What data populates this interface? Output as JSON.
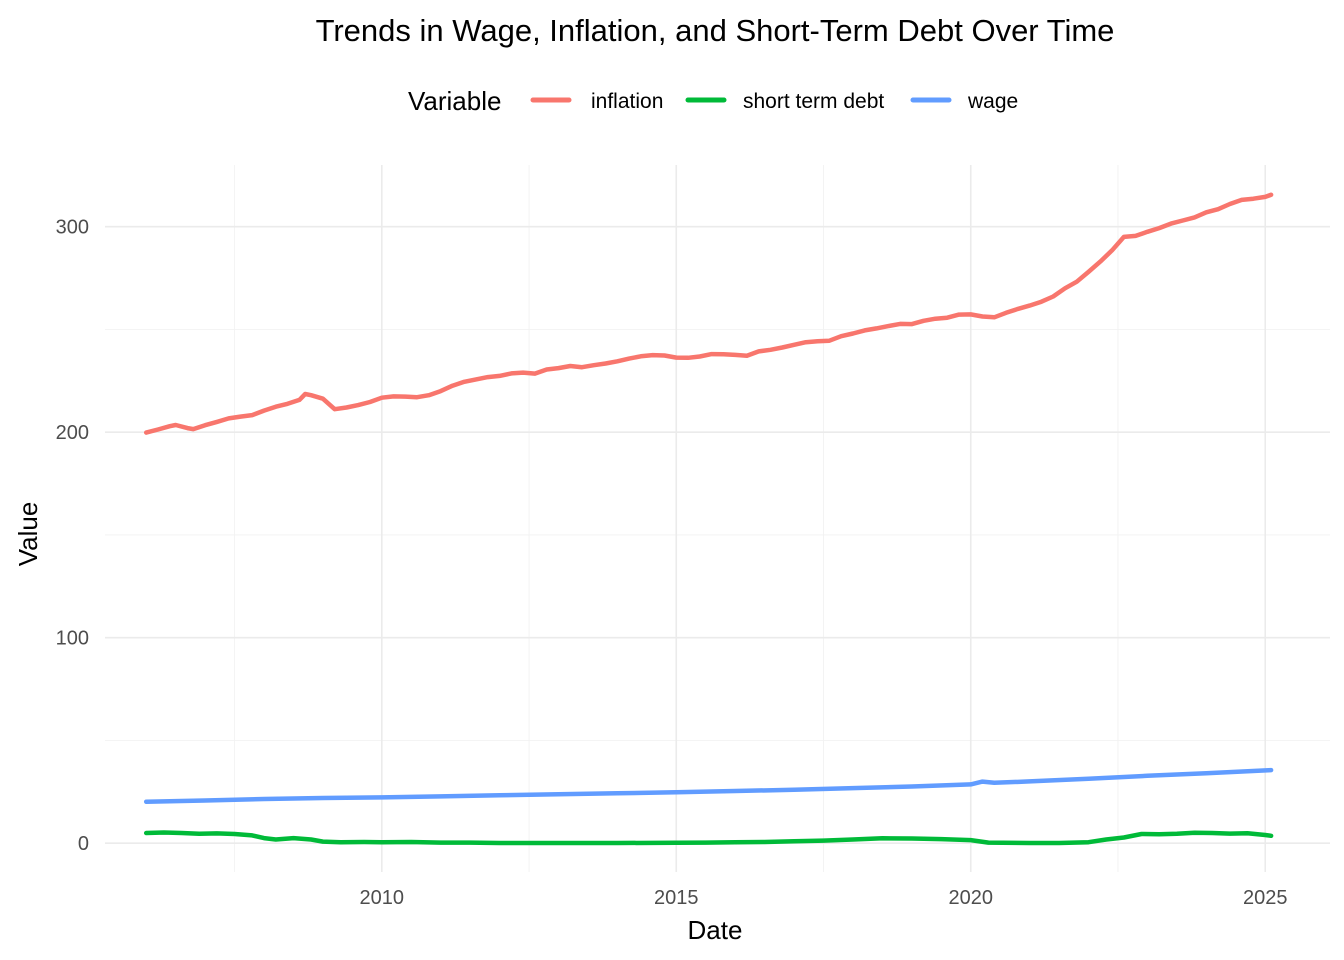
{
  "chart_data": {
    "type": "line",
    "title": "Trends in Wage, Inflation, and Short-Term Debt Over Time",
    "xlabel": "Date",
    "ylabel": "Value",
    "xlim": [
      2005.3,
      2026.1
    ],
    "ylim": [
      -14,
      330
    ],
    "x_ticks": [
      2010,
      2015,
      2020,
      2025
    ],
    "x_tick_labels": [
      "2010",
      "2015",
      "2020",
      "2025"
    ],
    "y_ticks": [
      0,
      100,
      200,
      300
    ],
    "y_tick_labels": [
      "0",
      "100",
      "200",
      "300"
    ],
    "grid": true,
    "legend": {
      "title": "Variable",
      "position": "top",
      "entries": [
        "inflation",
        "short term debt",
        "wage"
      ]
    },
    "series": [
      {
        "name": "inflation",
        "color": "#F8766D",
        "points": [
          [
            2006.0,
            199.8
          ],
          [
            2006.2,
            201.3
          ],
          [
            2006.4,
            202.9
          ],
          [
            2006.5,
            203.5
          ],
          [
            2006.7,
            202.0
          ],
          [
            2006.8,
            201.5
          ],
          [
            2007.0,
            203.4
          ],
          [
            2007.2,
            205.0
          ],
          [
            2007.4,
            206.7
          ],
          [
            2007.6,
            207.6
          ],
          [
            2007.8,
            208.3
          ],
          [
            2008.0,
            210.5
          ],
          [
            2008.2,
            212.4
          ],
          [
            2008.4,
            213.8
          ],
          [
            2008.6,
            215.7
          ],
          [
            2008.7,
            218.6
          ],
          [
            2008.8,
            218.0
          ],
          [
            2009.0,
            216.3
          ],
          [
            2009.2,
            211.2
          ],
          [
            2009.4,
            212.0
          ],
          [
            2009.6,
            213.2
          ],
          [
            2009.8,
            214.7
          ],
          [
            2010.0,
            216.8
          ],
          [
            2010.2,
            217.4
          ],
          [
            2010.4,
            217.3
          ],
          [
            2010.6,
            217.0
          ],
          [
            2010.8,
            218.0
          ],
          [
            2011.0,
            220.0
          ],
          [
            2011.2,
            222.6
          ],
          [
            2011.4,
            224.5
          ],
          [
            2011.6,
            225.7
          ],
          [
            2011.8,
            226.8
          ],
          [
            2012.0,
            227.4
          ],
          [
            2012.2,
            228.6
          ],
          [
            2012.4,
            229.0
          ],
          [
            2012.6,
            228.5
          ],
          [
            2012.8,
            230.5
          ],
          [
            2013.0,
            231.2
          ],
          [
            2013.2,
            232.2
          ],
          [
            2013.4,
            231.6
          ],
          [
            2013.6,
            232.6
          ],
          [
            2013.8,
            233.4
          ],
          [
            2014.0,
            234.5
          ],
          [
            2014.2,
            235.8
          ],
          [
            2014.4,
            236.9
          ],
          [
            2014.6,
            237.5
          ],
          [
            2014.8,
            237.3
          ],
          [
            2015.0,
            236.3
          ],
          [
            2015.2,
            236.2
          ],
          [
            2015.4,
            236.8
          ],
          [
            2015.6,
            238.0
          ],
          [
            2015.8,
            237.9
          ],
          [
            2016.0,
            237.6
          ],
          [
            2016.2,
            237.2
          ],
          [
            2016.4,
            239.3
          ],
          [
            2016.6,
            240.1
          ],
          [
            2016.8,
            241.2
          ],
          [
            2017.0,
            242.5
          ],
          [
            2017.2,
            243.8
          ],
          [
            2017.4,
            244.2
          ],
          [
            2017.6,
            244.5
          ],
          [
            2017.8,
            246.7
          ],
          [
            2018.0,
            248.0
          ],
          [
            2018.2,
            249.5
          ],
          [
            2018.4,
            250.5
          ],
          [
            2018.6,
            251.6
          ],
          [
            2018.8,
            252.7
          ],
          [
            2019.0,
            252.6
          ],
          [
            2019.2,
            254.2
          ],
          [
            2019.4,
            255.2
          ],
          [
            2019.6,
            255.7
          ],
          [
            2019.8,
            257.2
          ],
          [
            2020.0,
            257.3
          ],
          [
            2020.2,
            256.3
          ],
          [
            2020.4,
            255.9
          ],
          [
            2020.6,
            258.1
          ],
          [
            2020.8,
            260.0
          ],
          [
            2021.0,
            261.6
          ],
          [
            2021.2,
            263.5
          ],
          [
            2021.4,
            266.0
          ],
          [
            2021.6,
            270.0
          ],
          [
            2021.8,
            273.2
          ],
          [
            2022.0,
            278.0
          ],
          [
            2022.2,
            283.0
          ],
          [
            2022.4,
            288.5
          ],
          [
            2022.6,
            295.0
          ],
          [
            2022.8,
            295.5
          ],
          [
            2023.0,
            297.5
          ],
          [
            2023.2,
            299.3
          ],
          [
            2023.4,
            301.5
          ],
          [
            2023.6,
            303.0
          ],
          [
            2023.8,
            304.5
          ],
          [
            2024.0,
            307.0
          ],
          [
            2024.2,
            308.5
          ],
          [
            2024.4,
            311.0
          ],
          [
            2024.6,
            313.0
          ],
          [
            2024.8,
            313.6
          ],
          [
            2025.0,
            314.5
          ],
          [
            2025.1,
            315.5
          ]
        ]
      },
      {
        "name": "short term debt",
        "color": "#00BA38",
        "points": [
          [
            2006.0,
            5.0
          ],
          [
            2006.3,
            5.2
          ],
          [
            2006.6,
            5.0
          ],
          [
            2006.9,
            4.6
          ],
          [
            2007.2,
            4.8
          ],
          [
            2007.5,
            4.5
          ],
          [
            2007.8,
            3.8
          ],
          [
            2008.0,
            2.5
          ],
          [
            2008.2,
            1.8
          ],
          [
            2008.5,
            2.5
          ],
          [
            2008.8,
            1.8
          ],
          [
            2009.0,
            0.8
          ],
          [
            2009.3,
            0.5
          ],
          [
            2009.7,
            0.6
          ],
          [
            2010.0,
            0.5
          ],
          [
            2010.5,
            0.6
          ],
          [
            2011.0,
            0.3
          ],
          [
            2011.5,
            0.3
          ],
          [
            2012.0,
            0.1
          ],
          [
            2013.0,
            0.1
          ],
          [
            2014.0,
            0.1
          ],
          [
            2015.0,
            0.2
          ],
          [
            2015.5,
            0.3
          ],
          [
            2016.0,
            0.5
          ],
          [
            2016.5,
            0.6
          ],
          [
            2017.0,
            1.0
          ],
          [
            2017.5,
            1.3
          ],
          [
            2018.0,
            1.8
          ],
          [
            2018.5,
            2.4
          ],
          [
            2019.0,
            2.3
          ],
          [
            2019.5,
            2.0
          ],
          [
            2020.0,
            1.5
          ],
          [
            2020.3,
            0.3
          ],
          [
            2021.0,
            0.1
          ],
          [
            2021.5,
            0.1
          ],
          [
            2022.0,
            0.5
          ],
          [
            2022.3,
            1.8
          ],
          [
            2022.6,
            2.8
          ],
          [
            2022.9,
            4.5
          ],
          [
            2023.2,
            4.4
          ],
          [
            2023.5,
            4.6
          ],
          [
            2023.8,
            5.1
          ],
          [
            2024.1,
            5.0
          ],
          [
            2024.4,
            4.7
          ],
          [
            2024.7,
            4.9
          ],
          [
            2025.0,
            4.0
          ],
          [
            2025.1,
            3.6
          ]
        ]
      },
      {
        "name": "wage",
        "color": "#619CFF",
        "points": [
          [
            2006.0,
            20.2
          ],
          [
            2007.0,
            20.8
          ],
          [
            2008.0,
            21.5
          ],
          [
            2009.0,
            22.0
          ],
          [
            2010.0,
            22.3
          ],
          [
            2011.0,
            22.8
          ],
          [
            2012.0,
            23.3
          ],
          [
            2013.0,
            23.8
          ],
          [
            2014.0,
            24.3
          ],
          [
            2015.0,
            24.8
          ],
          [
            2016.0,
            25.4
          ],
          [
            2017.0,
            26.0
          ],
          [
            2018.0,
            26.8
          ],
          [
            2019.0,
            27.6
          ],
          [
            2020.0,
            28.6
          ],
          [
            2020.2,
            30.0
          ],
          [
            2020.4,
            29.4
          ],
          [
            2021.0,
            30.1
          ],
          [
            2022.0,
            31.4
          ],
          [
            2023.0,
            32.8
          ],
          [
            2024.0,
            34.0
          ],
          [
            2025.1,
            35.6
          ]
        ]
      }
    ]
  }
}
